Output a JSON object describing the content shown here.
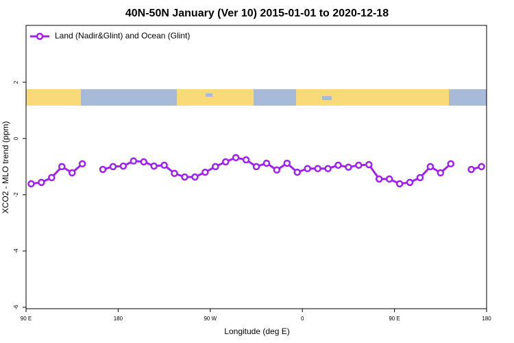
{
  "chart_data": {
    "type": "line",
    "title": "40N-50N January (Ver 10)   2015-01-01 to 2020-12-18",
    "xlabel": "Longitude (deg E)",
    "ylabel": "XCO2 - MLO trend (ppm)",
    "x": [
      95,
      105,
      115,
      125,
      135,
      145,
      155,
      165,
      175,
      185,
      195,
      205,
      215,
      225,
      235,
      245,
      255,
      265,
      275,
      285,
      295,
      305,
      315,
      325,
      335,
      345,
      355,
      365,
      375,
      385,
      395,
      405,
      415,
      425,
      435,
      445,
      455,
      465,
      475,
      485,
      495,
      505,
      515,
      525,
      535
    ],
    "series": [
      {
        "name": "Land (Nadir&Glint) and Ocean (Glint)",
        "color": "#a020f0",
        "values": [
          -1.61,
          -1.56,
          -1.39,
          -1.0,
          -1.22,
          -0.9,
          null,
          -1.1,
          -1.0,
          -0.98,
          -0.8,
          -0.83,
          -0.98,
          -0.95,
          -1.24,
          -1.37,
          -1.37,
          -1.2,
          -1.0,
          -0.83,
          -0.68,
          -0.76,
          -1.0,
          -0.88,
          -1.12,
          -0.88,
          -1.2,
          -1.07,
          -1.07,
          -1.07,
          -0.95,
          -1.02,
          -0.95,
          -0.93,
          -1.44,
          -1.44,
          -1.61,
          -1.56,
          -1.39,
          -1.0,
          -1.22,
          -0.9,
          null,
          -1.1,
          -1.0
        ]
      }
    ],
    "xlim": [
      90,
      540
    ],
    "xticks": [
      {
        "value": 90,
        "label": "90 E"
      },
      180,
      {
        "value": 270,
        "label": "90 W"
      },
      {
        "value": 360,
        "label": "0"
      },
      {
        "value": 450,
        "label": "90 E"
      },
      {
        "value": 540,
        "label": "180"
      }
    ],
    "ylim": [
      -6.05,
      4.02
    ],
    "yticks": [
      -6,
      -4,
      -2,
      0,
      2
    ],
    "legend": "top-left",
    "grid": false
  }
}
